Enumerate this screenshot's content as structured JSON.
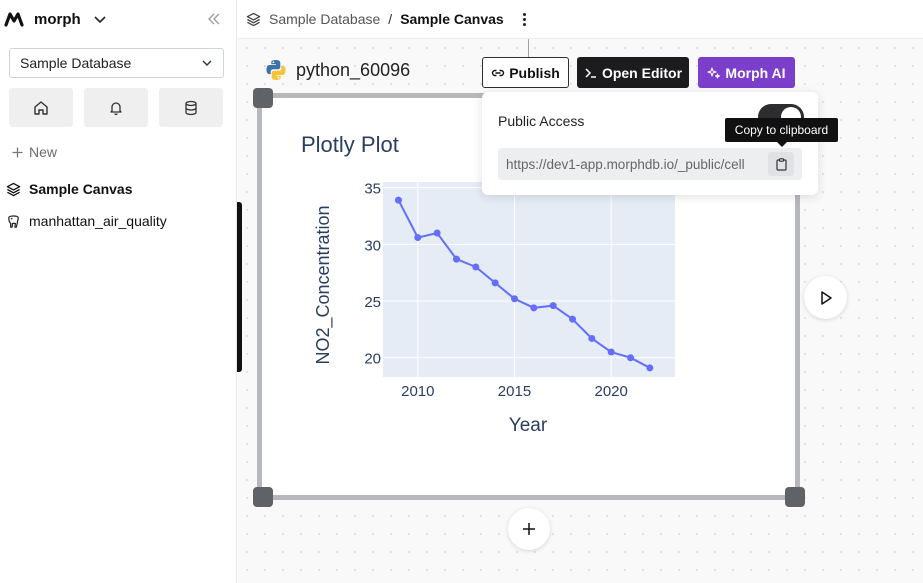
{
  "app": {
    "name": "morph"
  },
  "sidebar": {
    "database_select": "Sample Database",
    "new_label": "New",
    "items": [
      {
        "label": "Sample Canvas",
        "icon": "layers-icon"
      },
      {
        "label": "manhattan_air_quality",
        "icon": "postgres-elephant-icon"
      }
    ],
    "icon_buttons": [
      "home-icon",
      "bell-icon",
      "database-icon"
    ]
  },
  "header": {
    "breadcrumb_1": "Sample Database",
    "breadcrumb_sep": "/",
    "breadcrumb_2": "Sample Canvas"
  },
  "cell": {
    "name": "python_60096",
    "toolbar": {
      "publish_label": "Publish",
      "editor_label": "Open Editor",
      "ai_label": "Morph AI"
    }
  },
  "popover": {
    "label": "Public Access",
    "toggle_on": true,
    "url": "https://dev1-app.morphdb.io/_public/cell",
    "tooltip": "Copy to clipboard"
  },
  "colors": {
    "ai_purple": "#7c3fcb",
    "plot_line": "#636efa",
    "plot_bg": "#e5ecf6"
  },
  "chart_data": {
    "type": "line",
    "title": "Plotly Plot",
    "xlabel": "Year",
    "ylabel": "NO2_Concentration",
    "xlim": [
      2008.2,
      2023.3
    ],
    "ylim": [
      18.3,
      35.5
    ],
    "x_ticks": [
      2010,
      2015,
      2020
    ],
    "y_ticks": [
      20,
      25,
      30,
      35
    ],
    "x": [
      2009,
      2010,
      2011,
      2012,
      2013,
      2014,
      2015,
      2016,
      2017,
      2018,
      2019,
      2020,
      2021,
      2022
    ],
    "y": [
      33.9,
      30.6,
      31.0,
      28.7,
      28.0,
      26.6,
      25.2,
      24.4,
      24.6,
      23.4,
      21.7,
      20.5,
      20.0,
      19.1
    ],
    "grid": true
  }
}
